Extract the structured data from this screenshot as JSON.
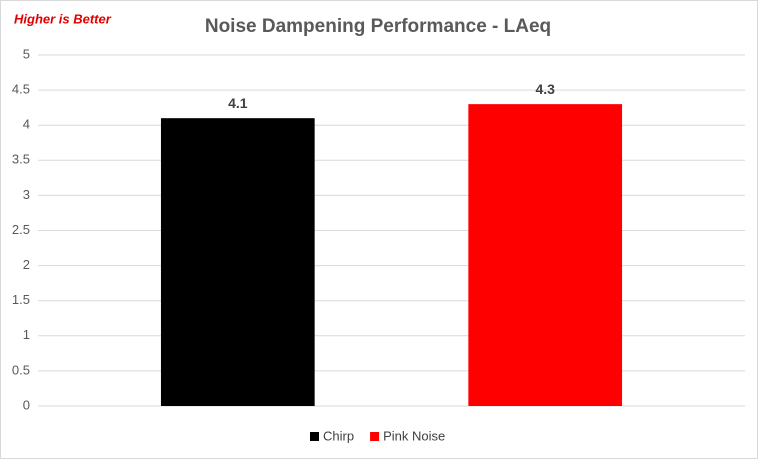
{
  "chart_data": {
    "type": "bar",
    "title": "Noise Dampening Performance - LAeq",
    "annotation": "Higher is Better",
    "categories": [
      null
    ],
    "series": [
      {
        "name": "Chirp",
        "color": "#000000",
        "values": [
          4.1
        ]
      },
      {
        "name": "Pink Noise",
        "color": "#ff0000",
        "values": [
          4.3
        ]
      }
    ],
    "ylim": [
      0,
      5
    ],
    "yticks": [
      0,
      0.5,
      1,
      1.5,
      2,
      2.5,
      3,
      3.5,
      4,
      4.5,
      5
    ],
    "grid": true,
    "legend": "bottom"
  }
}
